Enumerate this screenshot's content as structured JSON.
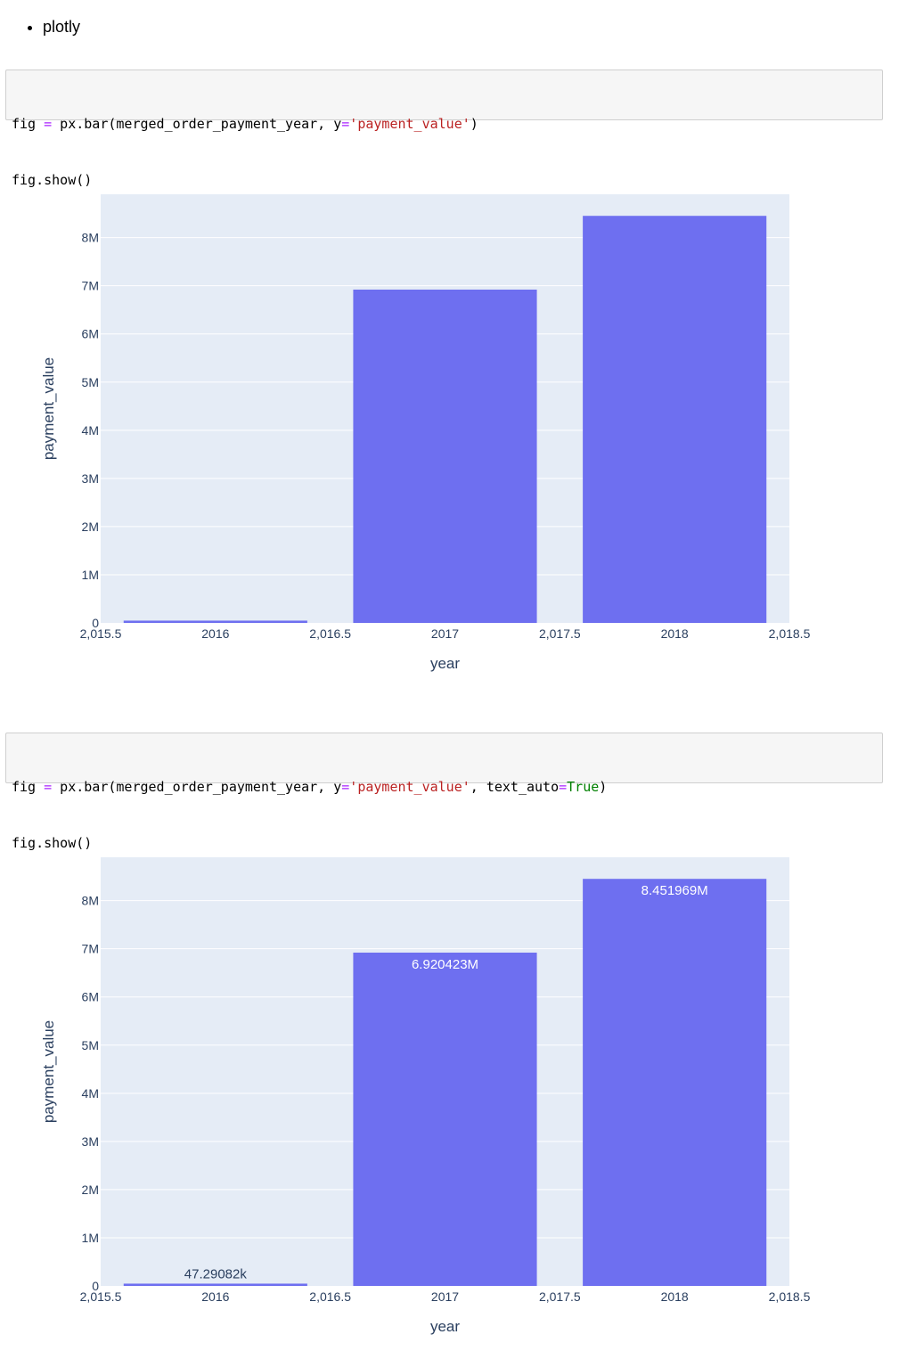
{
  "list": {
    "items": [
      "plotly"
    ]
  },
  "cells": [
    {
      "line1": {
        "a": "fig ",
        "op": "=",
        "b": " px.bar(merged_order_payment_year, y",
        "op2": "=",
        "str": "'payment_value'",
        "c": ")"
      },
      "line2": "fig.show()"
    },
    {
      "line1": {
        "a": "fig ",
        "op": "=",
        "b": " px.bar(merged_order_payment_year, y",
        "op2": "=",
        "str": "'payment_value'",
        "c": ", text_auto",
        "op3": "=",
        "kw": "True",
        "d": ")"
      },
      "line2": "fig.show()"
    }
  ],
  "colors": {
    "bar": "#6e6ff0",
    "plot_bg": "#e5ecf6",
    "grid": "#ffffff",
    "tick_text": "#2a3f5f",
    "bar_text_inside": "#ffffff",
    "bar_text_outside": "#2a3f5f"
  },
  "chart_data": [
    {
      "type": "bar",
      "x": [
        2016,
        2017,
        2018
      ],
      "values": [
        47290.82,
        6920423,
        8451969
      ],
      "xlabel": "year",
      "ylabel": "payment_value",
      "xlim": [
        2015.5,
        2018.5
      ],
      "ylim": [
        0,
        8900000
      ],
      "xticks": [
        2015.5,
        2016,
        2016.5,
        2017,
        2017.5,
        2018,
        2018.5
      ],
      "xtick_labels": [
        "2,015.5",
        "2016",
        "2,016.5",
        "2017",
        "2,017.5",
        "2018",
        "2,018.5"
      ],
      "yticks": [
        0,
        1000000,
        2000000,
        3000000,
        4000000,
        5000000,
        6000000,
        7000000,
        8000000
      ],
      "ytick_labels": [
        "0",
        "1M",
        "2M",
        "3M",
        "4M",
        "5M",
        "6M",
        "7M",
        "8M"
      ],
      "bar_labels": [],
      "grid": true,
      "legend": "none"
    },
    {
      "type": "bar",
      "x": [
        2016,
        2017,
        2018
      ],
      "values": [
        47290.82,
        6920423,
        8451969
      ],
      "xlabel": "year",
      "ylabel": "payment_value",
      "xlim": [
        2015.5,
        2018.5
      ],
      "ylim": [
        0,
        8900000
      ],
      "xticks": [
        2015.5,
        2016,
        2016.5,
        2017,
        2017.5,
        2018,
        2018.5
      ],
      "xtick_labels": [
        "2,015.5",
        "2016",
        "2,016.5",
        "2017",
        "2,017.5",
        "2018",
        "2,018.5"
      ],
      "yticks": [
        0,
        1000000,
        2000000,
        3000000,
        4000000,
        5000000,
        6000000,
        7000000,
        8000000
      ],
      "ytick_labels": [
        "0",
        "1M",
        "2M",
        "3M",
        "4M",
        "5M",
        "6M",
        "7M",
        "8M"
      ],
      "bar_labels": [
        "47.29082k",
        "6.920423M",
        "8.451969M"
      ],
      "grid": true,
      "legend": "none"
    }
  ]
}
